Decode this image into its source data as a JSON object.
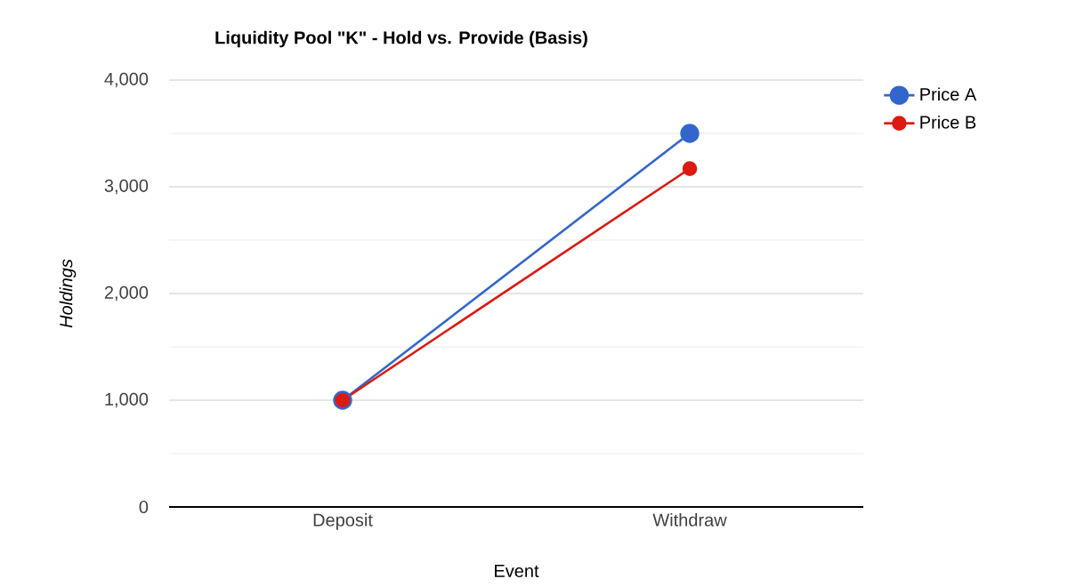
{
  "chart_data": {
    "type": "line",
    "title": "Liquidity Pool \"K\" - Hold vs. Provide (Basis)",
    "xlabel": "Event",
    "ylabel": "Holdings",
    "categories": [
      "Deposit",
      "Withdraw"
    ],
    "series": [
      {
        "name": "Price A",
        "color": "#3366cc",
        "values": [
          1000,
          3500
        ]
      },
      {
        "name": "Price B",
        "color": "#dc1a12",
        "values": [
          1000,
          3170
        ]
      }
    ],
    "ylim": [
      0,
      4000
    ],
    "yticks": [
      0,
      {
        "value": 500,
        "label": null
      },
      {
        "value": 1000,
        "label": "1,000"
      },
      {
        "value": 1500,
        "label": null
      },
      {
        "value": 2000,
        "label": "2,000"
      },
      {
        "value": 2500,
        "label": null
      },
      {
        "value": 3000,
        "label": "3,000"
      },
      {
        "value": 3500,
        "label": null
      },
      {
        "value": 4000,
        "label": "4,000"
      }
    ],
    "grid": "y",
    "legend": "top right",
    "marker": "circle",
    "line_style": "solid"
  }
}
